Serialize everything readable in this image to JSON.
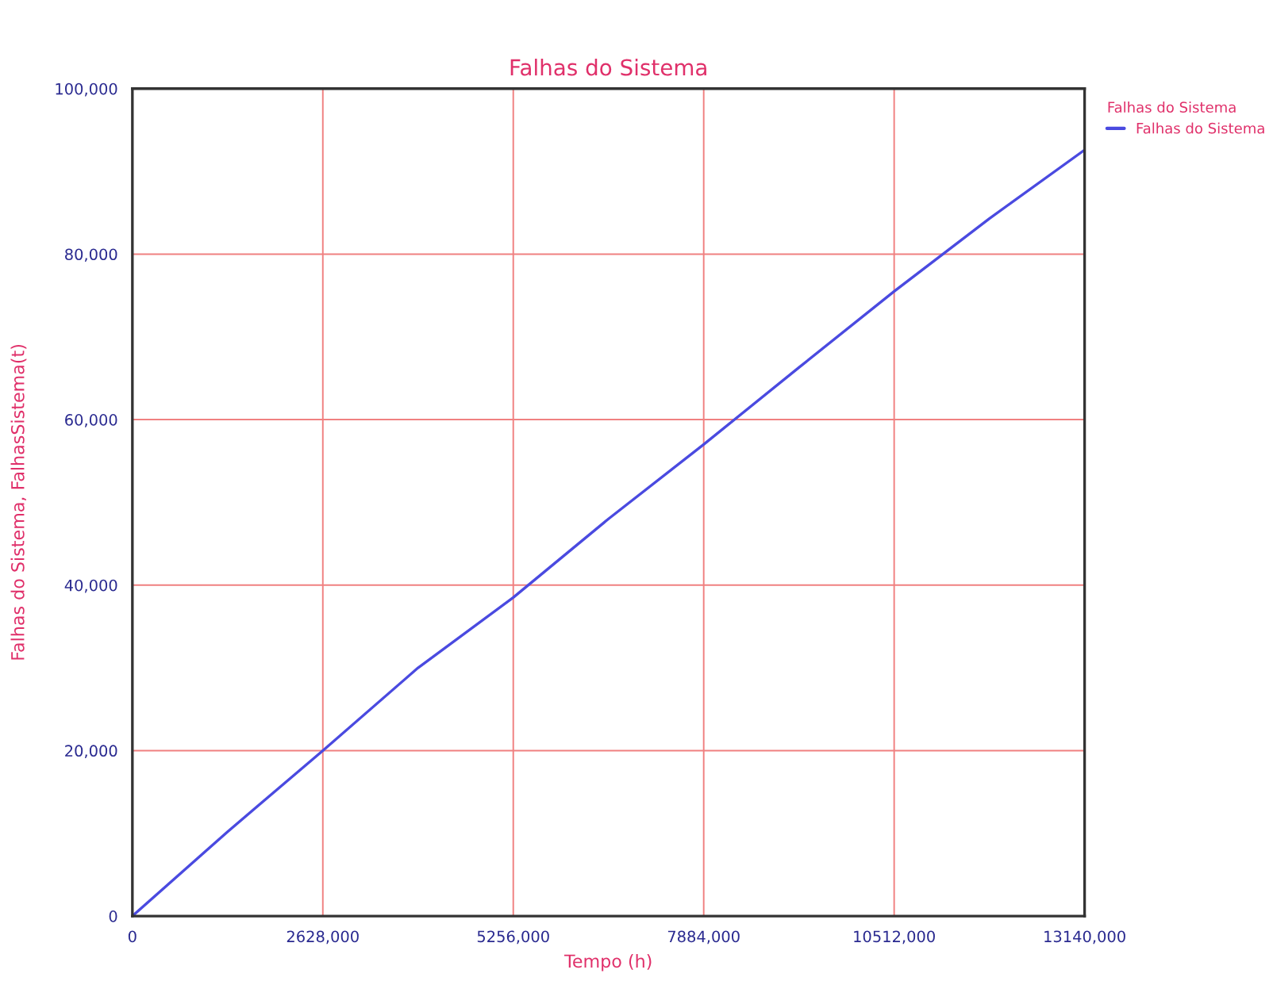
{
  "chart_data": {
    "type": "line",
    "title": "Falhas do Sistema",
    "xlabel": "Tempo (h)",
    "ylabel": "Falhas do Sistema, FalhasSistema(t)",
    "legend_title": "Falhas do Sistema",
    "categories": [
      "0",
      null,
      "2628,000",
      null,
      "5256,000",
      null,
      "7884,000",
      null,
      "10512,000",
      null,
      "13140,000"
    ],
    "series": [
      {
        "name": "Falhas do Sistema",
        "color": "#4a4ae0",
        "values": [
          0,
          10200,
          20000,
          30000,
          38500,
          48000,
          57000,
          66300,
          75500,
          84300,
          92600
        ]
      }
    ],
    "ylim": [
      0,
      100000
    ],
    "yticks": [
      {
        "value": 0,
        "label": "0"
      },
      {
        "value": 20000,
        "label": "20,000"
      },
      {
        "value": 40000,
        "label": "40,000"
      },
      {
        "value": 60000,
        "label": "60,000"
      },
      {
        "value": 80000,
        "label": "80,000"
      },
      {
        "value": 100000,
        "label": "100,000"
      }
    ],
    "grid": true,
    "legend": "top right",
    "marker": "none",
    "line_style": "solid"
  }
}
